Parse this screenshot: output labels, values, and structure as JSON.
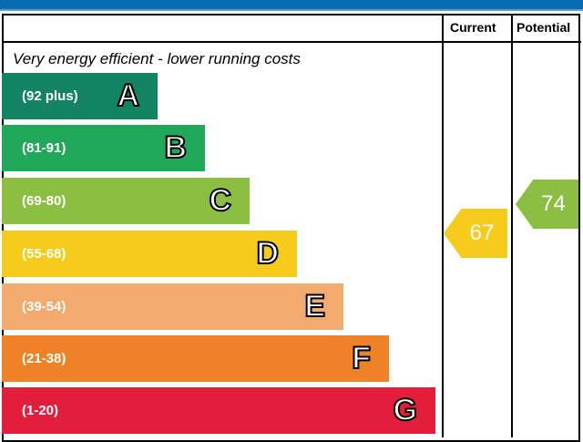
{
  "chart_data": {
    "type": "bar",
    "columns": [
      "Current",
      "Potential"
    ],
    "subtitle": "Very energy efficient - lower running costs",
    "bands": [
      {
        "range": "(92 plus)",
        "letter": "A",
        "color": "#138361"
      },
      {
        "range": "(81-91)",
        "letter": "B",
        "color": "#22a85a"
      },
      {
        "range": "(69-80)",
        "letter": "C",
        "color": "#8cbe44"
      },
      {
        "range": "(55-68)",
        "letter": "D",
        "color": "#f6cb1b"
      },
      {
        "range": "(39-54)",
        "letter": "E",
        "color": "#f2aa6d"
      },
      {
        "range": "(21-38)",
        "letter": "F",
        "color": "#ee8227"
      },
      {
        "range": "(1-20)",
        "letter": "G",
        "color": "#e21e3c"
      }
    ],
    "current": {
      "value": "67",
      "band": "D",
      "color": "#f6cb1b"
    },
    "potential": {
      "value": "74",
      "band": "C",
      "color": "#8cbe44"
    }
  }
}
